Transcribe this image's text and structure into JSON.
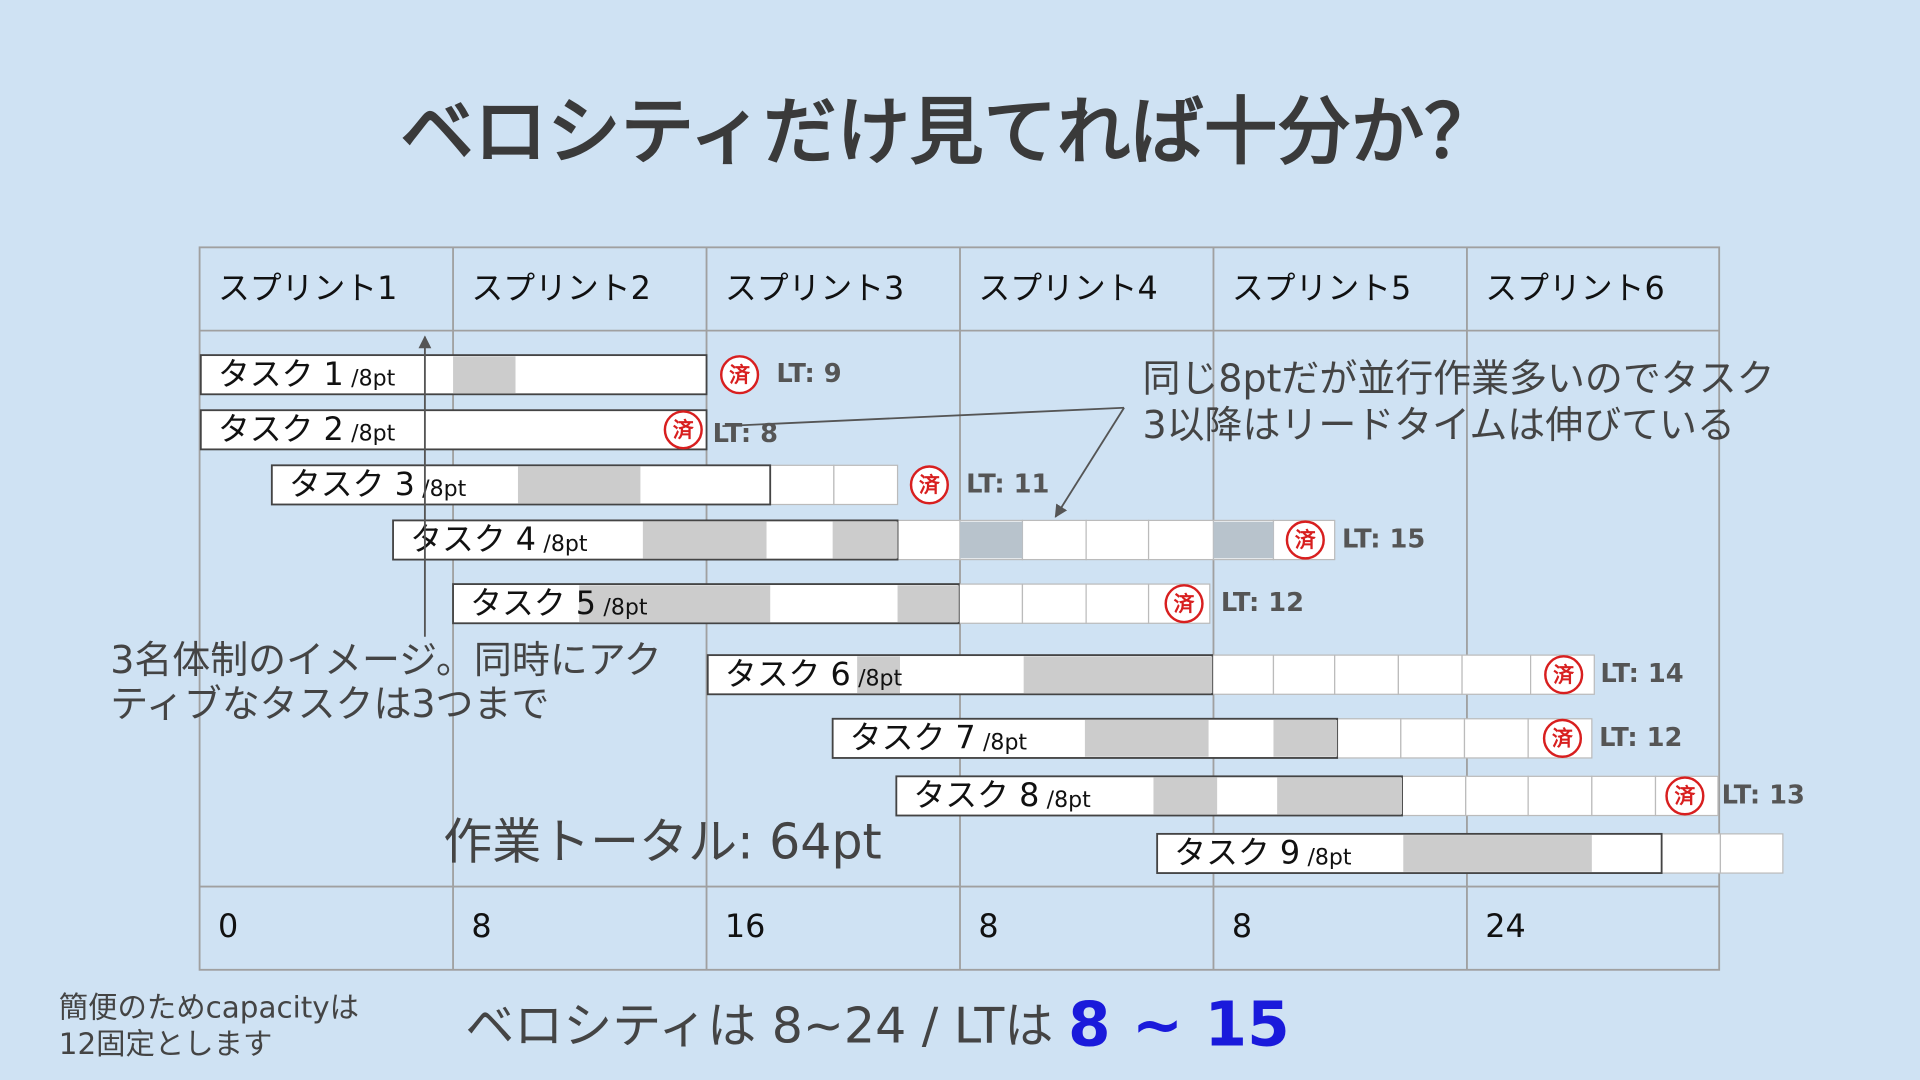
{
  "title": "ベロシティだけ見てれば十分か？",
  "table": {
    "headers": [
      "スプリント1",
      "スプリント2",
      "スプリント3",
      "スプリント4",
      "スプリント5",
      "スプリント6"
    ],
    "totals": [
      0,
      8,
      16,
      8,
      8,
      24
    ]
  },
  "tasks": [
    {
      "name": "タスク 1",
      "points": "/8pt",
      "status": "済",
      "lead_time": "LT: 9"
    },
    {
      "name": "タスク 2",
      "points": "/8pt",
      "status": "済",
      "lead_time": "LT: 8"
    },
    {
      "name": "タスク 3",
      "points": "/8pt",
      "status": "済",
      "lead_time": "LT: 11"
    },
    {
      "name": "タスク 4",
      "points": "/8pt",
      "status": "済",
      "lead_time": "LT: 15"
    },
    {
      "name": "タスク 5",
      "points": "/8pt",
      "status": "済",
      "lead_time": "LT: 12"
    },
    {
      "name": "タスク 6",
      "points": "/8pt",
      "status": "済",
      "lead_time": "LT: 14"
    },
    {
      "name": "タスク 7",
      "points": "/8pt",
      "status": "済",
      "lead_time": "LT: 12"
    },
    {
      "name": "タスク 8",
      "points": "/8pt",
      "status": "済",
      "lead_time": "LT: 13"
    },
    {
      "name": "タスク 9",
      "points": "/8pt"
    }
  ],
  "notes": {
    "parallel": [
      "同じ8ptだが並行作業多いのでタスク",
      "3以降はリードタイムは伸びている"
    ],
    "team": [
      "3名体制のイメージ。同時にアク",
      "ティブなタスクは3つまで"
    ],
    "total": "作業トータル: 64pt",
    "capacity": [
      "簡便のためcapacityは",
      "12固定とします"
    ]
  },
  "summary": {
    "text": "ベロシティは 8~24 / LTは",
    "range": "8 ~ 15"
  }
}
